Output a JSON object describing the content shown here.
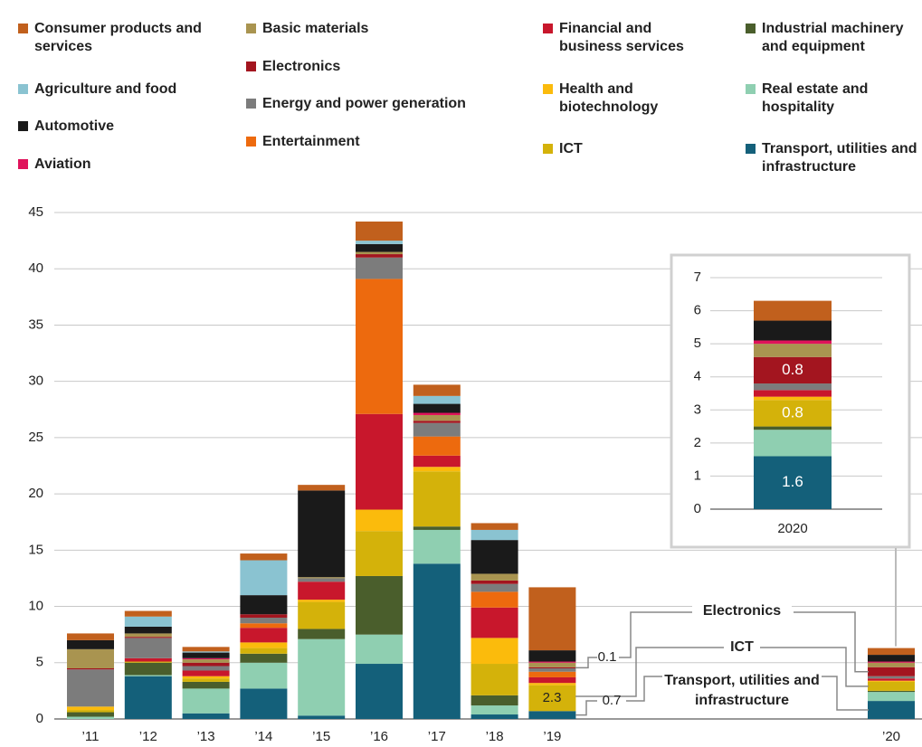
{
  "chart_data": [
    {
      "type": "bar",
      "categories": [
        "’11",
        "’12",
        "’13",
        "’14",
        "’15",
        "’16",
        "’17",
        "’18",
        "’19",
        "’20"
      ],
      "ylim": [
        0,
        45
      ],
      "yticks": [
        0,
        5,
        10,
        15,
        20,
        25,
        30,
        35,
        40,
        45
      ],
      "grid": true,
      "annotations": [
        "Electronics",
        "ICT",
        "Transport, utilities and infrastructure"
      ],
      "series": [
        {
          "name": "Transport, utilities and infrastructure",
          "color": "#14607a",
          "values": [
            0,
            3.8,
            0.5,
            2.7,
            0.3,
            4.9,
            13.8,
            0.4,
            0.7,
            1.6
          ]
        },
        {
          "name": "Real estate and hospitality",
          "color": "#8fcfb1",
          "values": [
            0.2,
            0.1,
            2.2,
            2.3,
            6.8,
            2.6,
            3.0,
            0.8,
            0,
            0.8
          ]
        },
        {
          "name": "Industrial machinery and equipment",
          "color": "#4a5e2c",
          "values": [
            0.4,
            1.1,
            0.6,
            0.8,
            0.9,
            5.2,
            0.3,
            0.9,
            0,
            0.1
          ]
        },
        {
          "name": "ICT",
          "color": "#d4b20a",
          "values": [
            0.2,
            0.1,
            0.3,
            0.5,
            2.4,
            4.0,
            4.9,
            2.8,
            2.3,
            0.8
          ]
        },
        {
          "name": "Health and biotechnology",
          "color": "#fbbb0c",
          "values": [
            0.3,
            0,
            0.2,
            0.5,
            0.2,
            1.9,
            0.4,
            2.3,
            0.2,
            0.1
          ]
        },
        {
          "name": "Financial and business services",
          "color": "#c8172c",
          "values": [
            0,
            0.3,
            0.5,
            1.3,
            1.6,
            8.5,
            1.0,
            2.7,
            0.5,
            0.2
          ]
        },
        {
          "name": "Entertainment",
          "color": "#ed6a0e",
          "values": [
            0,
            0,
            0,
            0.4,
            0,
            12.0,
            1.7,
            1.4,
            0.5,
            0
          ]
        },
        {
          "name": "Energy and power generation",
          "color": "#7c7c7c",
          "values": [
            3.3,
            1.8,
            0.4,
            0.5,
            0.3,
            1.9,
            1.2,
            0.7,
            0.3,
            0.2
          ]
        },
        {
          "name": "Electronics",
          "color": "#a3151f",
          "values": [
            0.1,
            0.1,
            0.3,
            0.3,
            0,
            0.3,
            0.2,
            0.3,
            0.1,
            0.8
          ]
        },
        {
          "name": "Basic materials",
          "color": "#a99450",
          "values": [
            1.7,
            0.3,
            0.3,
            0,
            0.1,
            0.2,
            0.5,
            0.6,
            0.4,
            0.4
          ]
        },
        {
          "name": "Aviation",
          "color": "#e0135b",
          "values": [
            0,
            0,
            0.1,
            0,
            0,
            0,
            0.2,
            0,
            0.1,
            0.1
          ]
        },
        {
          "name": "Automotive",
          "color": "#1a1a1a",
          "values": [
            0.8,
            0.6,
            0.5,
            1.7,
            7.7,
            0.7,
            0.8,
            3.0,
            1.0,
            0.6
          ]
        },
        {
          "name": "Agriculture and food",
          "color": "#8ac3d1",
          "values": [
            0,
            0.9,
            0.1,
            3.1,
            0,
            0.3,
            0.7,
            0.9,
            0,
            0
          ]
        },
        {
          "name": "Consumer products and services",
          "color": "#c1601d",
          "values": [
            0.6,
            0.5,
            0.4,
            0.6,
            0.5,
            1.7,
            1.0,
            0.6,
            5.6,
            0.6
          ]
        }
      ]
    },
    {
      "type": "bar",
      "categories": [
        "2020"
      ],
      "ylim": [
        0,
        7
      ],
      "yticks": [
        0,
        1,
        2,
        3,
        4,
        5,
        6,
        7
      ],
      "grid": true,
      "series": [
        {
          "color": "#14607a",
          "values": [
            1.6
          ]
        },
        {
          "color": "#8fcfb1",
          "values": [
            0.8
          ]
        },
        {
          "color": "#4a5e2c",
          "values": [
            0.1
          ]
        },
        {
          "color": "#d4b20a",
          "values": [
            0.8
          ]
        },
        {
          "color": "#fbbb0c",
          "values": [
            0.1
          ]
        },
        {
          "color": "#c8172c",
          "values": [
            0.2
          ]
        },
        {
          "color": "#ed6a0e",
          "values": [
            0
          ]
        },
        {
          "color": "#7c7c7c",
          "values": [
            0.2
          ]
        },
        {
          "color": "#a3151f",
          "values": [
            0.8
          ]
        },
        {
          "color": "#a99450",
          "values": [
            0.4
          ]
        },
        {
          "color": "#e0135b",
          "values": [
            0.1
          ]
        },
        {
          "color": "#1a1a1a",
          "values": [
            0.6
          ]
        },
        {
          "color": "#8ac3d1",
          "values": [
            0
          ]
        },
        {
          "color": "#c1601d",
          "values": [
            0.6
          ]
        }
      ]
    }
  ]
}
